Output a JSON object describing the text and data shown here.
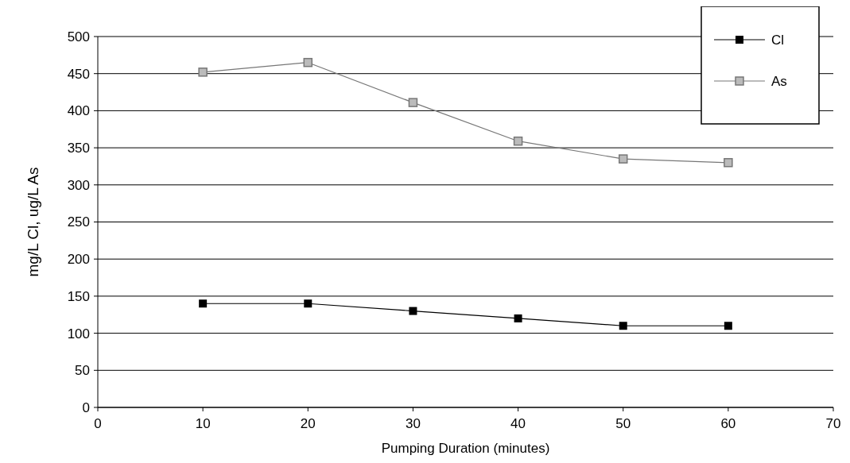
{
  "chart_data": {
    "type": "line",
    "xlabel": "Pumping Duration (minutes)",
    "ylabel": "mg/L Cl, ug/L As",
    "x": [
      10,
      20,
      30,
      40,
      50,
      60
    ],
    "series": [
      {
        "name": "Cl",
        "color": "#000000",
        "values": [
          140,
          140,
          130,
          120,
          110,
          110
        ]
      },
      {
        "name": "As",
        "color": "#777777",
        "values": [
          452,
          465,
          411,
          359,
          335,
          330
        ]
      }
    ],
    "xlim": [
      0,
      70
    ],
    "xticks": [
      0,
      10,
      20,
      30,
      40,
      50,
      60,
      70
    ],
    "ylim": [
      0,
      500
    ],
    "yticks": [
      0,
      50,
      100,
      150,
      200,
      250,
      300,
      350,
      400,
      450,
      500
    ],
    "grid": "y",
    "legend": "top right",
    "marker": "square",
    "line_style": "solid"
  }
}
